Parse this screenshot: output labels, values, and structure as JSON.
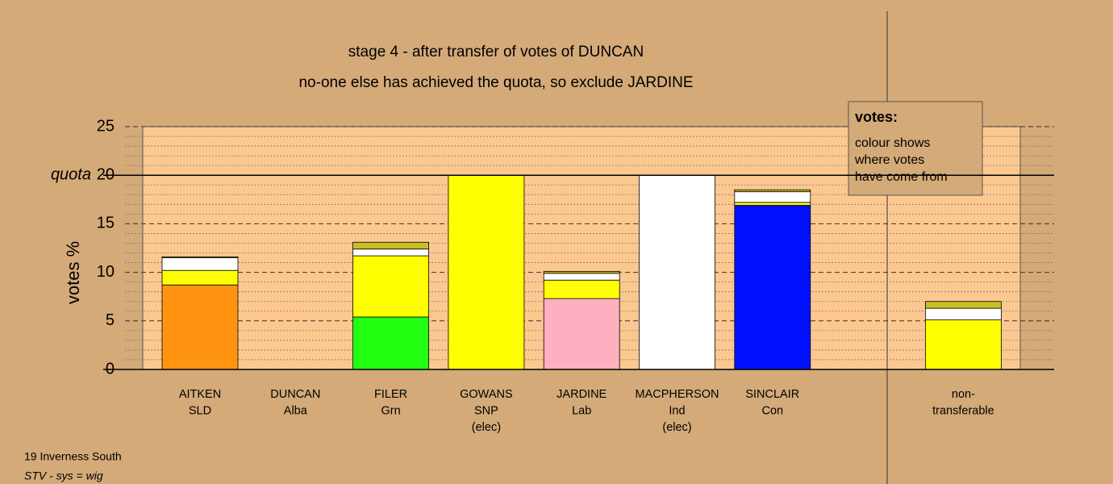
{
  "chart_data": {
    "type": "bar",
    "stacked": true,
    "title": "stage 4 - after transfer of votes of DUNCAN",
    "subtitle": "no-one else has achieved the quota, so exclude JARDINE",
    "y_label": "votes %",
    "quota": {
      "value": 20,
      "label": "quota"
    },
    "legend_title": "votes:",
    "legend_text": [
      "colour shows",
      "where votes",
      "have come from"
    ],
    "notes": [
      "19 Inverness South",
      "STV - sys = wig"
    ],
    "categories": [
      [
        "AITKEN",
        "SLD"
      ],
      [
        "DUNCAN",
        "Alba"
      ],
      [
        "FILER",
        "Grn"
      ],
      [
        "GOWANS",
        "SNP",
        "(elec)"
      ],
      [
        "JARDINE",
        "Lab"
      ],
      [
        "MACPHERSON",
        "Ind",
        "(elec)"
      ],
      [
        "SINCLAIR",
        "Con"
      ],
      null,
      [
        "non-",
        "transferable"
      ]
    ],
    "series": [
      {
        "color": "#ff9410",
        "values": [
          8.7,
          null,
          null,
          null,
          null,
          null,
          null,
          null,
          null
        ]
      },
      {
        "color": "#22ff10",
        "values": [
          null,
          null,
          5.4,
          null,
          null,
          null,
          null,
          null,
          null
        ]
      },
      {
        "color": "#ffb0c0",
        "values": [
          null,
          null,
          null,
          null,
          7.3,
          null,
          null,
          null,
          null
        ]
      },
      {
        "color": "#0010ff",
        "values": [
          null,
          null,
          null,
          null,
          null,
          null,
          16.9,
          null,
          null
        ]
      },
      {
        "color": "#ffff00",
        "values": [
          1.5,
          null,
          6.3,
          20,
          1.9,
          null,
          0.3,
          null,
          5.1
        ]
      },
      {
        "color": "#ffffff",
        "values": [
          1.3,
          null,
          0.7,
          null,
          0.7,
          20,
          1.1,
          null,
          1.2
        ]
      },
      {
        "color": "#c8c020",
        "values": [
          0.1,
          null,
          0.7,
          null,
          0.2,
          null,
          0.2,
          null,
          0.7
        ]
      }
    ],
    "ylim": [
      0,
      25
    ],
    "yticks": [
      0,
      5,
      10,
      15,
      20,
      25
    ],
    "yminorticks": [
      1,
      2,
      3,
      4,
      6,
      7,
      8,
      9,
      11,
      12,
      13,
      14,
      16,
      17,
      18,
      19,
      21,
      22,
      23,
      24
    ],
    "grid": true
  }
}
